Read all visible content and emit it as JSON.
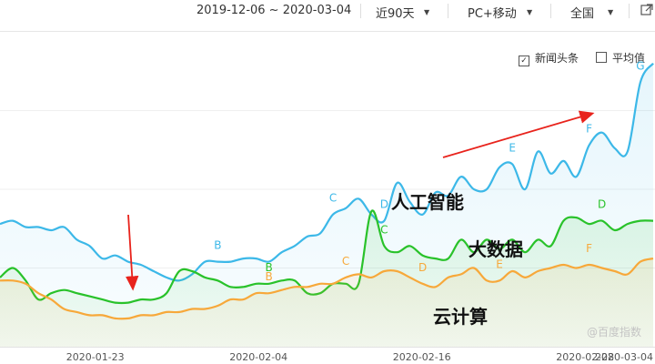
{
  "toolbar": {
    "date_range": "2019-12-06 ~ 2020-03-04",
    "period": "近90天",
    "device": "PC+移动",
    "region": "全国"
  },
  "legend": {
    "news_label": "新闻头条",
    "avg_label": "平均值",
    "news_checked": true,
    "avg_checked": false
  },
  "annotations": {
    "ai": "人工智能",
    "bigdata": "大数据",
    "cloud": "云计算"
  },
  "watermark": "@百度指数",
  "colors": {
    "ai": "#3cb8e8",
    "bigdata": "#29c22a",
    "cloud": "#f7a83a",
    "arrow": "#e8231c"
  },
  "chart_data": {
    "type": "line",
    "x_ticks": [
      "2020-01-23",
      "2020-02-04",
      "2020-02-16",
      "2020-02-28",
      "2020-03-04"
    ],
    "x_start": "2020-01-16",
    "x_end": "2020-03-04",
    "ylim": [
      0,
      100
    ],
    "grid": true,
    "series": [
      {
        "name": "人工智能",
        "values": [
          39,
          40,
          38,
          38,
          37,
          38,
          34,
          32,
          28,
          29,
          27,
          26,
          24,
          22,
          21,
          23,
          27,
          27,
          27,
          28,
          28,
          27,
          30,
          32,
          35,
          36,
          42,
          44,
          47,
          42,
          40,
          52,
          46,
          42,
          49,
          48,
          54,
          50,
          50,
          57,
          58,
          50,
          62,
          55,
          59,
          54,
          64,
          68,
          63,
          62,
          84,
          90
        ]
      },
      {
        "name": "大数据",
        "values": [
          22,
          25,
          21,
          15,
          17,
          18,
          17,
          16,
          15,
          14,
          14,
          15,
          15,
          17,
          24,
          24,
          22,
          21,
          19,
          19,
          20,
          20,
          21,
          21,
          17,
          17,
          20,
          20,
          20,
          43,
          32,
          30,
          32,
          29,
          28,
          28,
          34,
          30,
          34,
          31,
          34,
          30,
          34,
          32,
          40,
          41,
          39,
          40,
          37,
          39,
          40,
          40
        ]
      },
      {
        "name": "云计算",
        "values": [
          21,
          21,
          20,
          17,
          15,
          12,
          11,
          10,
          10,
          9,
          9,
          10,
          10,
          11,
          11,
          12,
          12,
          13,
          15,
          15,
          17,
          17,
          18,
          19,
          19,
          20,
          20,
          22,
          23,
          22,
          24,
          24,
          22,
          20,
          19,
          22,
          23,
          25,
          21,
          21,
          24,
          22,
          24,
          25,
          26,
          25,
          26,
          25,
          24,
          23,
          27,
          28
        ]
      }
    ],
    "point_markers": [
      {
        "series": "人工智能",
        "label": "B",
        "index": 17
      },
      {
        "series": "人工智能",
        "label": "C",
        "index": 26
      },
      {
        "series": "人工智能",
        "label": "D",
        "index": 30
      },
      {
        "series": "人工智能",
        "label": "E",
        "index": 40
      },
      {
        "series": "人工智能",
        "label": "F",
        "index": 46
      },
      {
        "series": "人工智能",
        "label": "G",
        "index": 50
      },
      {
        "series": "大数据",
        "label": "B",
        "index": 21
      },
      {
        "series": "大数据",
        "label": "C",
        "index": 30
      },
      {
        "series": "大数据",
        "label": "D",
        "index": 47
      },
      {
        "series": "云计算",
        "label": "B",
        "index": 21
      },
      {
        "series": "云计算",
        "label": "C",
        "index": 27
      },
      {
        "series": "云计算",
        "label": "D",
        "index": 33
      },
      {
        "series": "云计算",
        "label": "E",
        "index": 39
      },
      {
        "series": "云计算",
        "label": "F",
        "index": 46
      }
    ]
  }
}
